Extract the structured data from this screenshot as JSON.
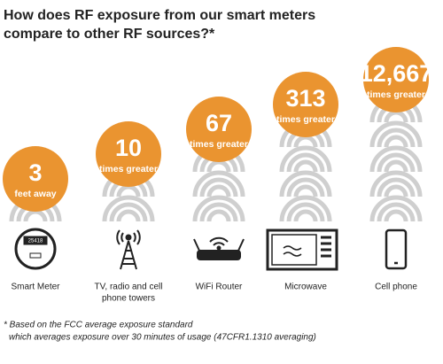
{
  "title": [
    "How does RF exposure from our smart meters",
    "compare to other RF sources?*"
  ],
  "items": [
    {
      "number": "3",
      "sublabel": "feet away",
      "label": [
        "Smart Meter"
      ]
    },
    {
      "number": "10",
      "sublabel": "times greater",
      "label": [
        "TV, radio and cell",
        "phone towers"
      ]
    },
    {
      "number": "67",
      "sublabel": "times greater",
      "label": [
        "WiFi Router"
      ]
    },
    {
      "number": "313",
      "sublabel": "times greater",
      "label": [
        "Microwave"
      ]
    },
    {
      "number": "12,667",
      "sublabel": "times greater",
      "label": [
        "Cell phone"
      ]
    }
  ],
  "footnote": [
    "* Based on the FCC average exposure standard",
    "which averages exposure over 30 minutes of usage (47CFR1.1310 averaging)"
  ]
}
